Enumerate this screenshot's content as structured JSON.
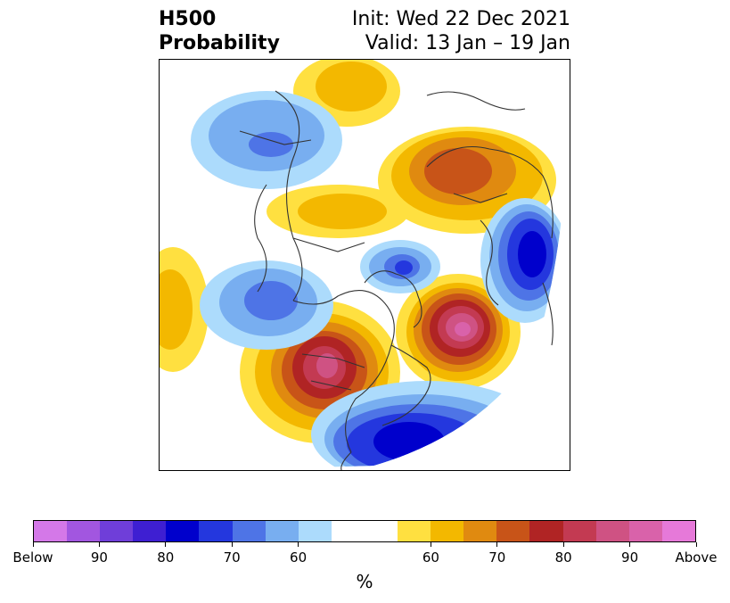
{
  "title": {
    "left_line1": "H500",
    "left_line2": "Probability",
    "right_line1": "Init: Wed 22 Dec 2021",
    "right_line2": "Valid: 13 Jan – 19 Jan"
  },
  "colorbar": {
    "colors": [
      "#d478e8",
      "#a256e0",
      "#6f3ed9",
      "#3e1fd2",
      "#0000cc",
      "#2437de",
      "#4e74e6",
      "#78aef0",
      "#acdbfc",
      "#ffffff",
      "#ffffff",
      "#ffe040",
      "#f3b800",
      "#e08a10",
      "#c85418",
      "#b02424",
      "#c33a52",
      "#cf5283",
      "#d962aa",
      "#e679d9"
    ],
    "tick_labels": [
      "Below",
      "90",
      "80",
      "70",
      "60",
      "60",
      "70",
      "80",
      "90",
      "Above"
    ],
    "unit_label": "%"
  },
  "map": {
    "anomalies": [
      {
        "name": "west-coast-ridge",
        "sign": "above",
        "level": 90
      },
      {
        "name": "north-atlantic-ridge",
        "sign": "above",
        "level": 90
      },
      {
        "name": "eurasia-ridge",
        "sign": "above",
        "level": 75
      },
      {
        "name": "siberia-ridge",
        "sign": "above",
        "level": 60
      },
      {
        "name": "east-pacific-ridge",
        "sign": "above",
        "level": 60
      },
      {
        "name": "southeast-us-trough",
        "sign": "below",
        "level": 80
      },
      {
        "name": "northwest-europe-trough",
        "sign": "below",
        "level": 80
      },
      {
        "name": "arctic-trough",
        "sign": "below",
        "level": 70
      },
      {
        "name": "bering-trough",
        "sign": "below",
        "level": 70
      },
      {
        "name": "central-asia-trough",
        "sign": "below",
        "level": 70
      }
    ]
  }
}
